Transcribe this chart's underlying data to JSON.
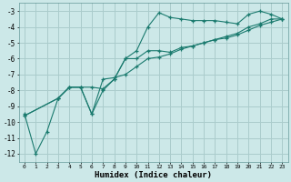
{
  "xlabel": "Humidex (Indice chaleur)",
  "bg_color": "#cce8e8",
  "grid_color": "#aacccc",
  "line_color": "#1a7a6e",
  "xlim": [
    -0.5,
    23.5
  ],
  "ylim": [
    -12.5,
    -2.5
  ],
  "yticks": [
    -12,
    -11,
    -10,
    -9,
    -8,
    -7,
    -6,
    -5,
    -4,
    -3
  ],
  "xticks": [
    0,
    1,
    2,
    3,
    4,
    5,
    6,
    7,
    8,
    9,
    10,
    11,
    12,
    13,
    14,
    15,
    16,
    17,
    18,
    19,
    20,
    21,
    22,
    23
  ],
  "line1_x": [
    0,
    1,
    2,
    3,
    4,
    5,
    6,
    7,
    8,
    9,
    10,
    11,
    12,
    13,
    14,
    15,
    16,
    17,
    18,
    19,
    20,
    21,
    22,
    23
  ],
  "line1_y": [
    -9.5,
    -12.0,
    -10.6,
    -8.5,
    -7.8,
    -7.8,
    -9.5,
    -8.0,
    -7.3,
    -6.0,
    -5.5,
    -4.0,
    -3.1,
    -3.4,
    -3.5,
    -3.6,
    -3.6,
    -3.6,
    -3.7,
    -3.8,
    -3.2,
    -3.0,
    -3.2,
    -3.5
  ],
  "line2_x": [
    0,
    3,
    4,
    5,
    6,
    7,
    8,
    9,
    10,
    11,
    12,
    13,
    14,
    15,
    16,
    17,
    18,
    19,
    20,
    21,
    22,
    23
  ],
  "line2_y": [
    -9.6,
    -8.5,
    -7.8,
    -7.8,
    -7.8,
    -7.9,
    -7.3,
    -6.0,
    -6.0,
    -5.5,
    -5.5,
    -5.6,
    -5.3,
    -5.2,
    -5.0,
    -4.8,
    -4.7,
    -4.5,
    -4.2,
    -3.9,
    -3.7,
    -3.5
  ],
  "line3_x": [
    0,
    3,
    4,
    5,
    6,
    7,
    8,
    9,
    10,
    11,
    12,
    13,
    14,
    15,
    16,
    17,
    18,
    19,
    20,
    21,
    22,
    23
  ],
  "line3_y": [
    -9.6,
    -8.5,
    -7.8,
    -7.8,
    -9.5,
    -7.3,
    -7.2,
    -7.0,
    -6.5,
    -6.0,
    -5.9,
    -5.7,
    -5.4,
    -5.2,
    -5.0,
    -4.8,
    -4.6,
    -4.4,
    -4.0,
    -3.8,
    -3.5,
    -3.5
  ]
}
